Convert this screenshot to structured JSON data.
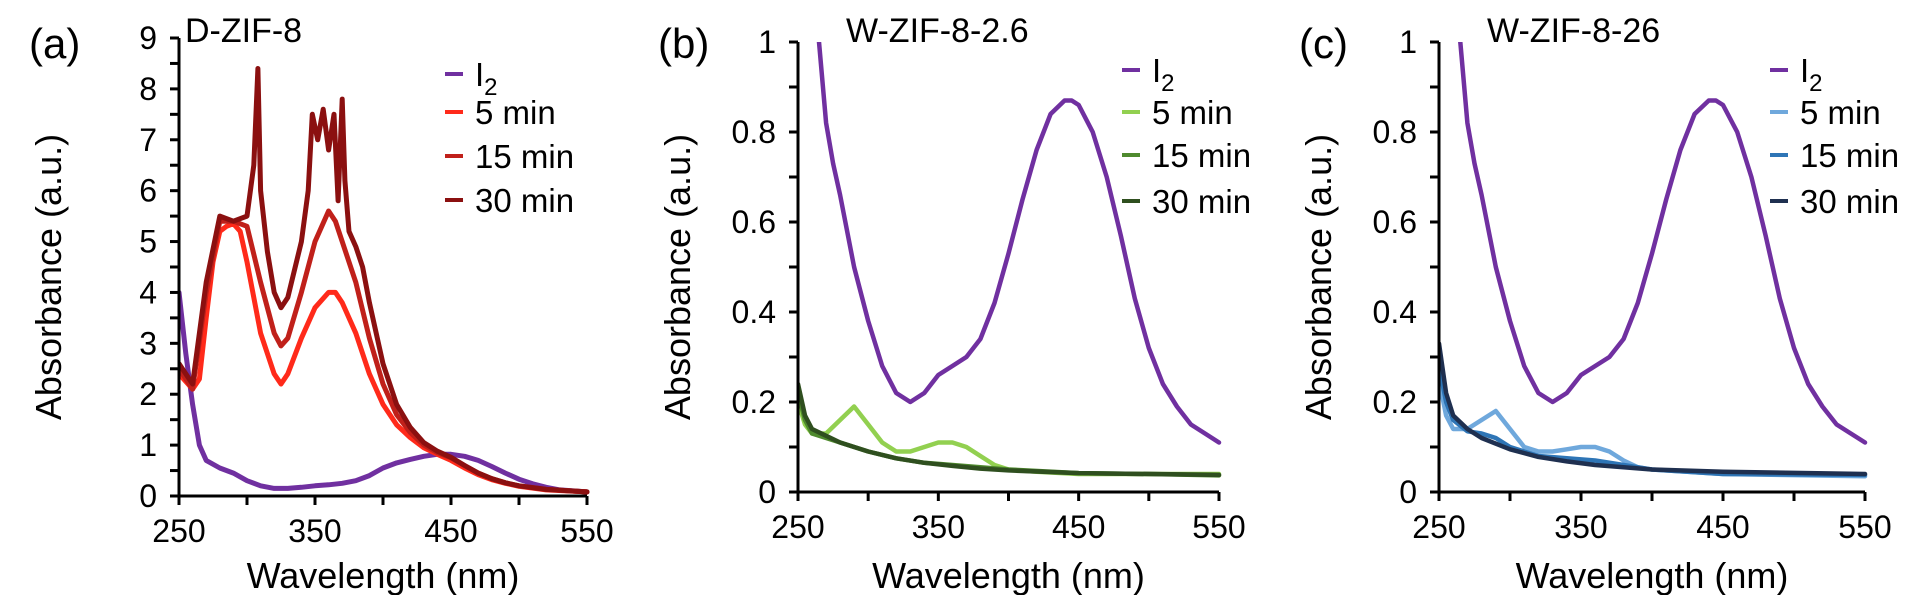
{
  "chart_data": [
    {
      "type": "line",
      "panel_label": "(a)",
      "title": "D-ZIF-8",
      "xlabel": "Wavelength (nm)",
      "ylabel": "Absorbance (a.u.)",
      "xlim": [
        250,
        550
      ],
      "ylim": [
        0,
        9
      ],
      "xticks": [
        250,
        350,
        450,
        550
      ],
      "yticks": [
        0,
        1,
        2,
        3,
        4,
        5,
        6,
        7,
        8,
        9
      ],
      "legend_position": "top-right",
      "series": [
        {
          "name": "I2",
          "color": "#7030a0",
          "x": [
            250,
            255,
            260,
            265,
            270,
            280,
            290,
            300,
            310,
            320,
            330,
            340,
            350,
            360,
            370,
            380,
            390,
            400,
            410,
            420,
            430,
            440,
            450,
            460,
            470,
            480,
            490,
            500,
            510,
            520,
            530,
            540,
            550
          ],
          "y": [
            4.0,
            2.8,
            1.8,
            1.0,
            0.7,
            0.55,
            0.45,
            0.3,
            0.2,
            0.15,
            0.15,
            0.17,
            0.2,
            0.22,
            0.25,
            0.3,
            0.4,
            0.55,
            0.65,
            0.72,
            0.78,
            0.82,
            0.82,
            0.78,
            0.7,
            0.58,
            0.45,
            0.33,
            0.24,
            0.17,
            0.12,
            0.1,
            0.08
          ]
        },
        {
          "name": "5 min",
          "color": "#ff2a1a",
          "x": [
            250,
            260,
            265,
            270,
            275,
            280,
            285,
            290,
            295,
            300,
            310,
            320,
            325,
            330,
            340,
            350,
            360,
            365,
            370,
            380,
            390,
            400,
            410,
            420,
            430,
            440,
            450,
            460,
            470,
            480,
            490,
            500,
            520,
            550
          ],
          "y": [
            2.4,
            2.1,
            2.3,
            3.5,
            4.6,
            5.2,
            5.3,
            5.35,
            5.2,
            4.6,
            3.2,
            2.4,
            2.2,
            2.4,
            3.1,
            3.7,
            4.0,
            4.0,
            3.8,
            3.2,
            2.4,
            1.8,
            1.4,
            1.15,
            0.95,
            0.82,
            0.7,
            0.55,
            0.42,
            0.32,
            0.25,
            0.19,
            0.12,
            0.08
          ]
        },
        {
          "name": "15 min",
          "color": "#c0201a",
          "x": [
            250,
            260,
            270,
            280,
            290,
            300,
            310,
            320,
            325,
            330,
            340,
            350,
            360,
            365,
            370,
            380,
            390,
            400,
            410,
            420,
            430,
            440,
            450,
            460,
            470,
            480,
            490,
            500,
            520,
            550
          ],
          "y": [
            2.5,
            2.1,
            4.0,
            5.4,
            5.4,
            5.3,
            4.2,
            3.2,
            2.95,
            3.1,
            4.0,
            5.0,
            5.6,
            5.4,
            5.0,
            4.2,
            3.1,
            2.2,
            1.6,
            1.25,
            1.0,
            0.85,
            0.75,
            0.6,
            0.45,
            0.34,
            0.26,
            0.2,
            0.13,
            0.08
          ]
        },
        {
          "name": "30 min",
          "color": "#8b1010",
          "x": [
            250,
            260,
            270,
            280,
            290,
            300,
            305,
            308,
            310,
            315,
            320,
            325,
            330,
            340,
            345,
            348,
            352,
            356,
            360,
            364,
            367,
            370,
            372,
            375,
            380,
            385,
            390,
            400,
            410,
            420,
            430,
            440,
            450,
            460,
            470,
            480,
            490,
            500,
            520,
            550
          ],
          "y": [
            2.6,
            2.2,
            4.2,
            5.5,
            5.4,
            5.5,
            6.5,
            8.4,
            6.0,
            4.8,
            4.0,
            3.7,
            3.9,
            5.0,
            6.0,
            7.5,
            7.0,
            7.6,
            6.8,
            7.5,
            5.8,
            7.8,
            6.2,
            5.2,
            4.9,
            4.5,
            3.8,
            2.6,
            1.8,
            1.35,
            1.05,
            0.88,
            0.76,
            0.6,
            0.45,
            0.34,
            0.26,
            0.2,
            0.13,
            0.08
          ]
        }
      ]
    },
    {
      "type": "line",
      "panel_label": "(b)",
      "title": "W-ZIF-8-2.6",
      "xlabel": "Wavelength (nm)",
      "ylabel": "Absorbance (a.u.)",
      "xlim": [
        250,
        550
      ],
      "ylim": [
        0,
        1
      ],
      "xticks": [
        250,
        350,
        450,
        550
      ],
      "yticks": [
        0,
        0.2,
        0.4,
        0.6,
        0.8,
        1
      ],
      "ytick_labels": [
        "0",
        "0.2",
        "0.4",
        "0.6",
        "0.8",
        "1"
      ],
      "legend_position": "top-right",
      "series": [
        {
          "name": "I2",
          "color": "#7030a0",
          "x": [
            260,
            265,
            270,
            275,
            280,
            290,
            300,
            310,
            320,
            330,
            340,
            350,
            360,
            370,
            380,
            390,
            400,
            410,
            420,
            430,
            440,
            445,
            450,
            460,
            470,
            480,
            490,
            500,
            510,
            520,
            530,
            540,
            550
          ],
          "y": [
            1.2,
            1.0,
            0.82,
            0.73,
            0.66,
            0.5,
            0.38,
            0.28,
            0.22,
            0.2,
            0.22,
            0.26,
            0.28,
            0.3,
            0.34,
            0.42,
            0.53,
            0.65,
            0.76,
            0.84,
            0.87,
            0.87,
            0.86,
            0.8,
            0.7,
            0.57,
            0.43,
            0.32,
            0.24,
            0.19,
            0.15,
            0.13,
            0.11
          ]
        },
        {
          "name": "5 min",
          "color": "#92d050",
          "x": [
            250,
            255,
            260,
            270,
            280,
            290,
            300,
            310,
            320,
            330,
            340,
            350,
            360,
            370,
            380,
            390,
            400,
            420,
            450,
            500,
            550
          ],
          "y": [
            0.2,
            0.15,
            0.13,
            0.13,
            0.16,
            0.19,
            0.15,
            0.11,
            0.09,
            0.09,
            0.1,
            0.11,
            0.11,
            0.1,
            0.08,
            0.06,
            0.05,
            0.045,
            0.04,
            0.04,
            0.04
          ]
        },
        {
          "name": "15 min",
          "color": "#4f8a2e",
          "x": [
            250,
            255,
            260,
            270,
            280,
            290,
            300,
            320,
            340,
            360,
            380,
            400,
            450,
            500,
            550
          ],
          "y": [
            0.22,
            0.16,
            0.13,
            0.12,
            0.11,
            0.1,
            0.09,
            0.075,
            0.065,
            0.06,
            0.055,
            0.05,
            0.042,
            0.04,
            0.037
          ]
        },
        {
          "name": "30 min",
          "color": "#2f4f1f",
          "x": [
            250,
            255,
            260,
            270,
            280,
            300,
            320,
            340,
            360,
            380,
            400,
            450,
            550
          ],
          "y": [
            0.24,
            0.17,
            0.14,
            0.125,
            0.11,
            0.09,
            0.075,
            0.065,
            0.058,
            0.052,
            0.048,
            0.042,
            0.038
          ]
        }
      ]
    },
    {
      "type": "line",
      "panel_label": "(c)",
      "title": "W-ZIF-8-26",
      "xlabel": "Wavelength (nm)",
      "ylabel": "Absorbance (a.u.)",
      "xlim": [
        250,
        550
      ],
      "ylim": [
        0,
        1
      ],
      "xticks": [
        250,
        350,
        450,
        550
      ],
      "yticks": [
        0,
        0.2,
        0.4,
        0.6,
        0.8,
        1
      ],
      "ytick_labels": [
        "0",
        "0.2",
        "0.4",
        "0.6",
        "0.8",
        "1"
      ],
      "legend_position": "top-right",
      "series": [
        {
          "name": "I2",
          "color": "#7030a0",
          "x": [
            260,
            265,
            270,
            275,
            280,
            290,
            300,
            310,
            320,
            330,
            340,
            350,
            360,
            370,
            380,
            390,
            400,
            410,
            420,
            430,
            440,
            445,
            450,
            460,
            470,
            480,
            490,
            500,
            510,
            520,
            530,
            540,
            550
          ],
          "y": [
            1.2,
            1.0,
            0.82,
            0.73,
            0.66,
            0.5,
            0.38,
            0.28,
            0.22,
            0.2,
            0.22,
            0.26,
            0.28,
            0.3,
            0.34,
            0.42,
            0.53,
            0.65,
            0.76,
            0.84,
            0.87,
            0.87,
            0.86,
            0.8,
            0.7,
            0.57,
            0.43,
            0.32,
            0.24,
            0.19,
            0.15,
            0.13,
            0.11
          ]
        },
        {
          "name": "5 min",
          "color": "#6fa8dc",
          "x": [
            250,
            255,
            260,
            265,
            270,
            280,
            290,
            300,
            310,
            320,
            330,
            340,
            350,
            360,
            370,
            380,
            390,
            400,
            450,
            550
          ],
          "y": [
            0.25,
            0.17,
            0.14,
            0.14,
            0.14,
            0.16,
            0.18,
            0.14,
            0.1,
            0.09,
            0.09,
            0.095,
            0.1,
            0.1,
            0.09,
            0.07,
            0.055,
            0.05,
            0.04,
            0.035
          ]
        },
        {
          "name": "15 min",
          "color": "#2e75b6",
          "x": [
            250,
            255,
            260,
            270,
            280,
            290,
            300,
            320,
            340,
            360,
            380,
            400,
            450,
            550
          ],
          "y": [
            0.28,
            0.2,
            0.16,
            0.135,
            0.13,
            0.12,
            0.1,
            0.08,
            0.075,
            0.07,
            0.06,
            0.05,
            0.04,
            0.038
          ]
        },
        {
          "name": "30 min",
          "color": "#1f3050",
          "x": [
            250,
            255,
            260,
            270,
            280,
            300,
            320,
            340,
            360,
            380,
            400,
            450,
            550
          ],
          "y": [
            0.33,
            0.22,
            0.17,
            0.14,
            0.12,
            0.095,
            0.078,
            0.068,
            0.06,
            0.055,
            0.05,
            0.045,
            0.04
          ]
        }
      ]
    }
  ]
}
